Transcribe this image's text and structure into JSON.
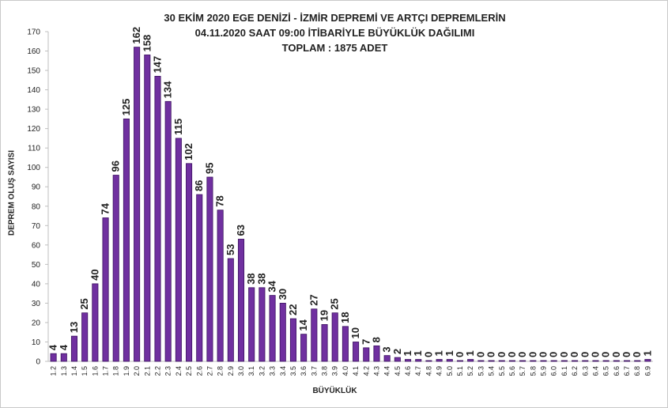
{
  "chart_data": {
    "type": "bar",
    "title": [
      "30 EKİM 2020  EGE DENİZİ - İZMİR DEPREMİ VE ARTÇI DEPREMLERİN",
      "04.11.2020  SAAT 09:00 İTİBARİYLE   BÜYÜKLÜK DAĞILIMI",
      "TOPLAM : 1875 ADET"
    ],
    "xlabel": "BÜYÜKLÜK",
    "ylabel": "DEPREM OLUŞ SAYISI",
    "ylim": [
      0,
      170
    ],
    "yticks": [
      0,
      10,
      20,
      30,
      40,
      50,
      60,
      70,
      80,
      90,
      100,
      110,
      120,
      130,
      140,
      150,
      160,
      170
    ],
    "categories": [
      "1.2",
      "1.3",
      "1.4",
      "1.5",
      "1.6",
      "1.7",
      "1.8",
      "1.9",
      "2.0",
      "2.1",
      "2.2",
      "2.3",
      "2.4",
      "2.5",
      "2.6",
      "2.7",
      "2.8",
      "2.9",
      "3.0",
      "3.1",
      "3.2",
      "3.3",
      "3.4",
      "3.5",
      "3.6",
      "3.7",
      "3.8",
      "3.9",
      "4.0",
      "4.1",
      "4.2",
      "4.3",
      "4.4",
      "4.5",
      "4.6",
      "4.7",
      "4.8",
      "4.9",
      "5.0",
      "5.1",
      "5.2",
      "5.3",
      "5.4",
      "5.5",
      "5.6",
      "5.7",
      "5.8",
      "5.9",
      "6.0",
      "6.1",
      "6.2",
      "6.3",
      "6.4",
      "6.5",
      "6.6",
      "6.7",
      "6.8",
      "6.9"
    ],
    "values": [
      4,
      4,
      13,
      25,
      40,
      74,
      96,
      125,
      162,
      158,
      147,
      134,
      115,
      102,
      86,
      95,
      78,
      53,
      63,
      38,
      38,
      34,
      30,
      22,
      14,
      27,
      19,
      25,
      18,
      10,
      7,
      8,
      3,
      2,
      1,
      1,
      0,
      1,
      1,
      0,
      1,
      0,
      0,
      0,
      0,
      0,
      0,
      0,
      0,
      0,
      0,
      0,
      0,
      0,
      0,
      0,
      0,
      1
    ],
    "grid": false,
    "legend": "none",
    "colors": {
      "bar": "#7030a0",
      "bar_edge": "#3c1260",
      "axis": "#bfbfbf",
      "text": "#222222"
    }
  }
}
